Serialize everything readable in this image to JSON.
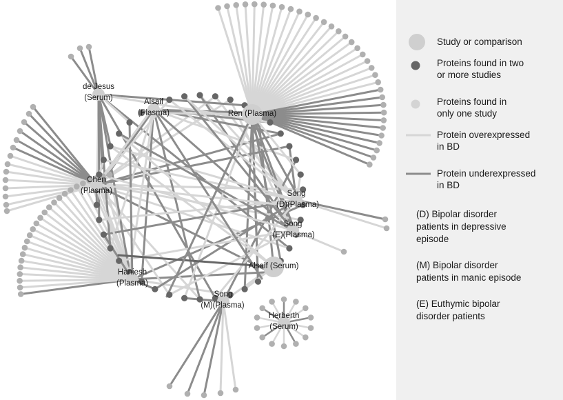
{
  "colors": {
    "study_node": "#cfcfcf",
    "shared_protein": "#666666",
    "unique_protein": "#b0b0b0",
    "overexpressed_edge": "#d6d6d6",
    "underexpressed_edge": "#8c8c8c",
    "legend_background": "#f0f0f0"
  },
  "studies": [
    {
      "id": "dejesus",
      "line1": "de Jesus",
      "line2": "(Serum)"
    },
    {
      "id": "alsaif_p",
      "line1": "Alsaif",
      "line2": "(Plasma)"
    },
    {
      "id": "ren",
      "line1": "Ren (Plasma)",
      "line2": ""
    },
    {
      "id": "chen",
      "line1": "Chen",
      "line2": "(Plasma)"
    },
    {
      "id": "song_d",
      "line1": "Song",
      "line2": "(D)(Plasma)"
    },
    {
      "id": "song_e",
      "line1": "Song",
      "line2": "(E)(Plasma)"
    },
    {
      "id": "alsaif_s",
      "line1": "Alsaif (Serum)",
      "line2": ""
    },
    {
      "id": "haniesh",
      "line1": "Haniesh",
      "line2": "(Plasma)"
    },
    {
      "id": "song_m",
      "line1": "Song",
      "line2": "(M)(Plasma)"
    },
    {
      "id": "herberth",
      "line1": "Herberth",
      "line2": "(Serum)"
    }
  ],
  "legend": {
    "study": "Study or comparison",
    "shared_line1": "Proteins found in two",
    "shared_line2": "or more studies",
    "unique_line1": "Proteins found in",
    "unique_line2": "only one study",
    "over_line1": "Protein overexpressed",
    "over_line2": "in BD",
    "under_line1": "Protein underexpressed",
    "under_line2": "in BD"
  },
  "notes": {
    "d_line1": "(D) Bipolar disorder",
    "d_line2": "patients in depressive",
    "d_line3": "episode",
    "m_line1": "(M) Bipolar disorder",
    "m_line2": "patients in manic episode",
    "e_line1": "(E) Euthymic bipolar",
    "e_line2": "disorder patients"
  }
}
